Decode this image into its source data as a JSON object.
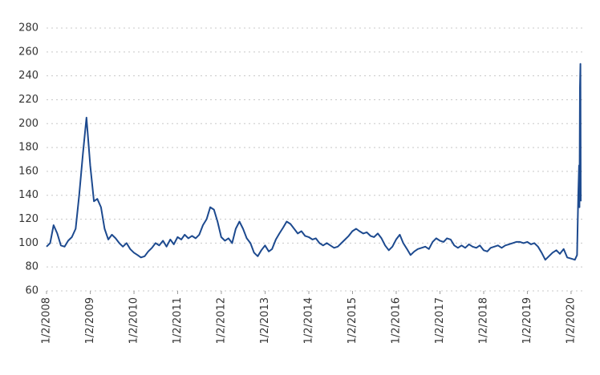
{
  "chart_data": {
    "type": "line",
    "x": [
      "1/2/2008",
      "2/1/2008",
      "3/1/2008",
      "4/1/2008",
      "5/1/2008",
      "6/1/2008",
      "7/1/2008",
      "8/1/2008",
      "9/1/2008",
      "10/1/2008",
      "11/1/2008",
      "12/1/2008",
      "1/1/2009",
      "2/1/2009",
      "3/1/2009",
      "4/1/2009",
      "5/1/2009",
      "6/1/2009",
      "7/1/2009",
      "8/1/2009",
      "9/1/2009",
      "10/1/2009",
      "11/1/2009",
      "12/1/2009",
      "1/1/2010",
      "2/1/2010",
      "3/1/2010",
      "4/1/2010",
      "5/1/2010",
      "6/1/2010",
      "7/1/2010",
      "8/1/2010",
      "9/1/2010",
      "10/1/2010",
      "11/1/2010",
      "12/1/2010",
      "1/1/2011",
      "2/1/2011",
      "3/1/2011",
      "4/1/2011",
      "5/1/2011",
      "6/1/2011",
      "7/1/2011",
      "8/1/2011",
      "9/1/2011",
      "10/1/2011",
      "11/1/2011",
      "12/1/2011",
      "1/1/2012",
      "2/1/2012",
      "3/1/2012",
      "4/1/2012",
      "5/1/2012",
      "6/1/2012",
      "7/1/2012",
      "8/1/2012",
      "9/1/2012",
      "10/1/2012",
      "11/1/2012",
      "12/1/2012",
      "1/1/2013",
      "2/1/2013",
      "3/1/2013",
      "4/1/2013",
      "5/1/2013",
      "6/1/2013",
      "7/1/2013",
      "8/1/2013",
      "9/1/2013",
      "10/1/2013",
      "11/1/2013",
      "12/1/2013",
      "1/1/2014",
      "2/1/2014",
      "3/1/2014",
      "4/1/2014",
      "5/1/2014",
      "6/1/2014",
      "7/1/2014",
      "8/1/2014",
      "9/1/2014",
      "10/1/2014",
      "11/1/2014",
      "12/1/2014",
      "1/1/2015",
      "2/1/2015",
      "3/1/2015",
      "4/1/2015",
      "5/1/2015",
      "6/1/2015",
      "7/1/2015",
      "8/1/2015",
      "9/1/2015",
      "10/1/2015",
      "11/1/2015",
      "12/1/2015",
      "1/1/2016",
      "2/1/2016",
      "3/1/2016",
      "4/1/2016",
      "5/1/2016",
      "6/1/2016",
      "7/1/2016",
      "8/1/2016",
      "9/1/2016",
      "10/1/2016",
      "11/1/2016",
      "12/1/2016",
      "1/1/2017",
      "2/1/2017",
      "3/1/2017",
      "4/1/2017",
      "5/1/2017",
      "6/1/2017",
      "7/1/2017",
      "8/1/2017",
      "9/1/2017",
      "10/1/2017",
      "11/1/2017",
      "12/1/2017",
      "1/1/2018",
      "2/1/2018",
      "3/1/2018",
      "4/1/2018",
      "5/1/2018",
      "6/1/2018",
      "7/1/2018",
      "8/1/2018",
      "9/1/2018",
      "10/1/2018",
      "11/1/2018",
      "12/1/2018",
      "1/1/2019",
      "2/1/2019",
      "3/1/2019",
      "4/1/2019",
      "5/1/2019",
      "6/1/2019",
      "7/1/2019",
      "8/1/2019",
      "9/1/2019",
      "10/1/2019",
      "11/1/2019",
      "12/1/2019",
      "1/2/2020",
      "2/3/2020",
      "2/21/2020",
      "3/2/2020",
      "3/9/2020",
      "3/12/2020",
      "3/16/2020",
      "3/20/2020",
      "3/23/2020"
    ],
    "values": [
      97,
      100,
      115,
      108,
      98,
      97,
      102,
      105,
      112,
      140,
      175,
      205,
      165,
      135,
      137,
      130,
      112,
      103,
      107,
      104,
      100,
      97,
      100,
      95,
      92,
      90,
      88,
      89,
      93,
      96,
      100,
      98,
      102,
      97,
      103,
      99,
      105,
      103,
      107,
      104,
      106,
      104,
      107,
      115,
      120,
      130,
      128,
      118,
      105,
      102,
      104,
      100,
      112,
      118,
      112,
      104,
      100,
      92,
      89,
      94,
      98,
      93,
      95,
      103,
      108,
      113,
      118,
      116,
      112,
      108,
      110,
      106,
      105,
      103,
      104,
      100,
      98,
      100,
      98,
      96,
      97,
      100,
      103,
      106,
      110,
      112,
      110,
      108,
      109,
      106,
      105,
      108,
      104,
      98,
      94,
      97,
      103,
      107,
      100,
      95,
      90,
      93,
      95,
      96,
      97,
      95,
      101,
      104,
      102,
      101,
      104,
      103,
      98,
      96,
      98,
      96,
      99,
      97,
      96,
      98,
      94,
      93,
      96,
      97,
      98,
      96,
      98,
      99,
      100,
      101,
      101,
      100,
      101,
      99,
      100,
      97,
      92,
      86,
      89,
      92,
      94,
      91,
      95,
      88,
      87,
      86,
      90,
      140,
      165,
      130,
      230,
      250,
      135
    ],
    "color": "#1d4a8f",
    "xlim": [
      "1/2/2008",
      "3/23/2020"
    ],
    "xticks": [
      "1/2/2008",
      "1/2/2009",
      "1/2/2010",
      "1/2/2011",
      "1/2/2012",
      "1/2/2013",
      "1/2/2014",
      "1/2/2015",
      "1/2/2016",
      "1/2/2017",
      "1/2/2018",
      "1/2/2019",
      "1/2/2020"
    ],
    "ylim": [
      60,
      280
    ],
    "yticks": [
      60,
      80,
      100,
      120,
      140,
      160,
      180,
      200,
      220,
      240,
      260,
      280
    ],
    "grid": true
  }
}
